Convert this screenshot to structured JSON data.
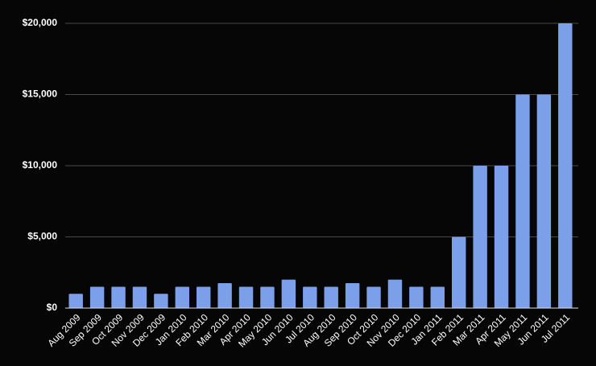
{
  "chart_data": {
    "type": "bar",
    "categories": [
      "Aug 2009",
      "Sep 2009",
      "Oct 2009",
      "Nov 2009",
      "Dec 2009",
      "Jan 2010",
      "Feb 2010",
      "Mar 2010",
      "Apr 2010",
      "May 2010",
      "Jun 2010",
      "Jul 2010",
      "Aug 2010",
      "Sep 2010",
      "Oct 2010",
      "Nov 2010",
      "Dec 2010",
      "Jan 2011",
      "Feb 2011",
      "Mar 2011",
      "Apr 2011",
      "May 2011",
      "Jun 2011",
      "Jul 2011"
    ],
    "values": [
      1000,
      1500,
      1500,
      1500,
      1000,
      1500,
      1500,
      1750,
      1500,
      1500,
      2000,
      1500,
      1500,
      1750,
      1500,
      2000,
      1500,
      1500,
      5000,
      10000,
      10000,
      15000,
      15000,
      20000
    ],
    "color": "#7b9fe8",
    "ylim": [
      0,
      20000
    ],
    "yticks": [
      {
        "value": 0,
        "label": "$0"
      },
      {
        "value": 5000,
        "label": "$5,000"
      },
      {
        "value": 10000,
        "label": "$10,000"
      },
      {
        "value": 15000,
        "label": "$15,000"
      },
      {
        "value": 20000,
        "label": "$20,000"
      }
    ],
    "grid": true
  }
}
